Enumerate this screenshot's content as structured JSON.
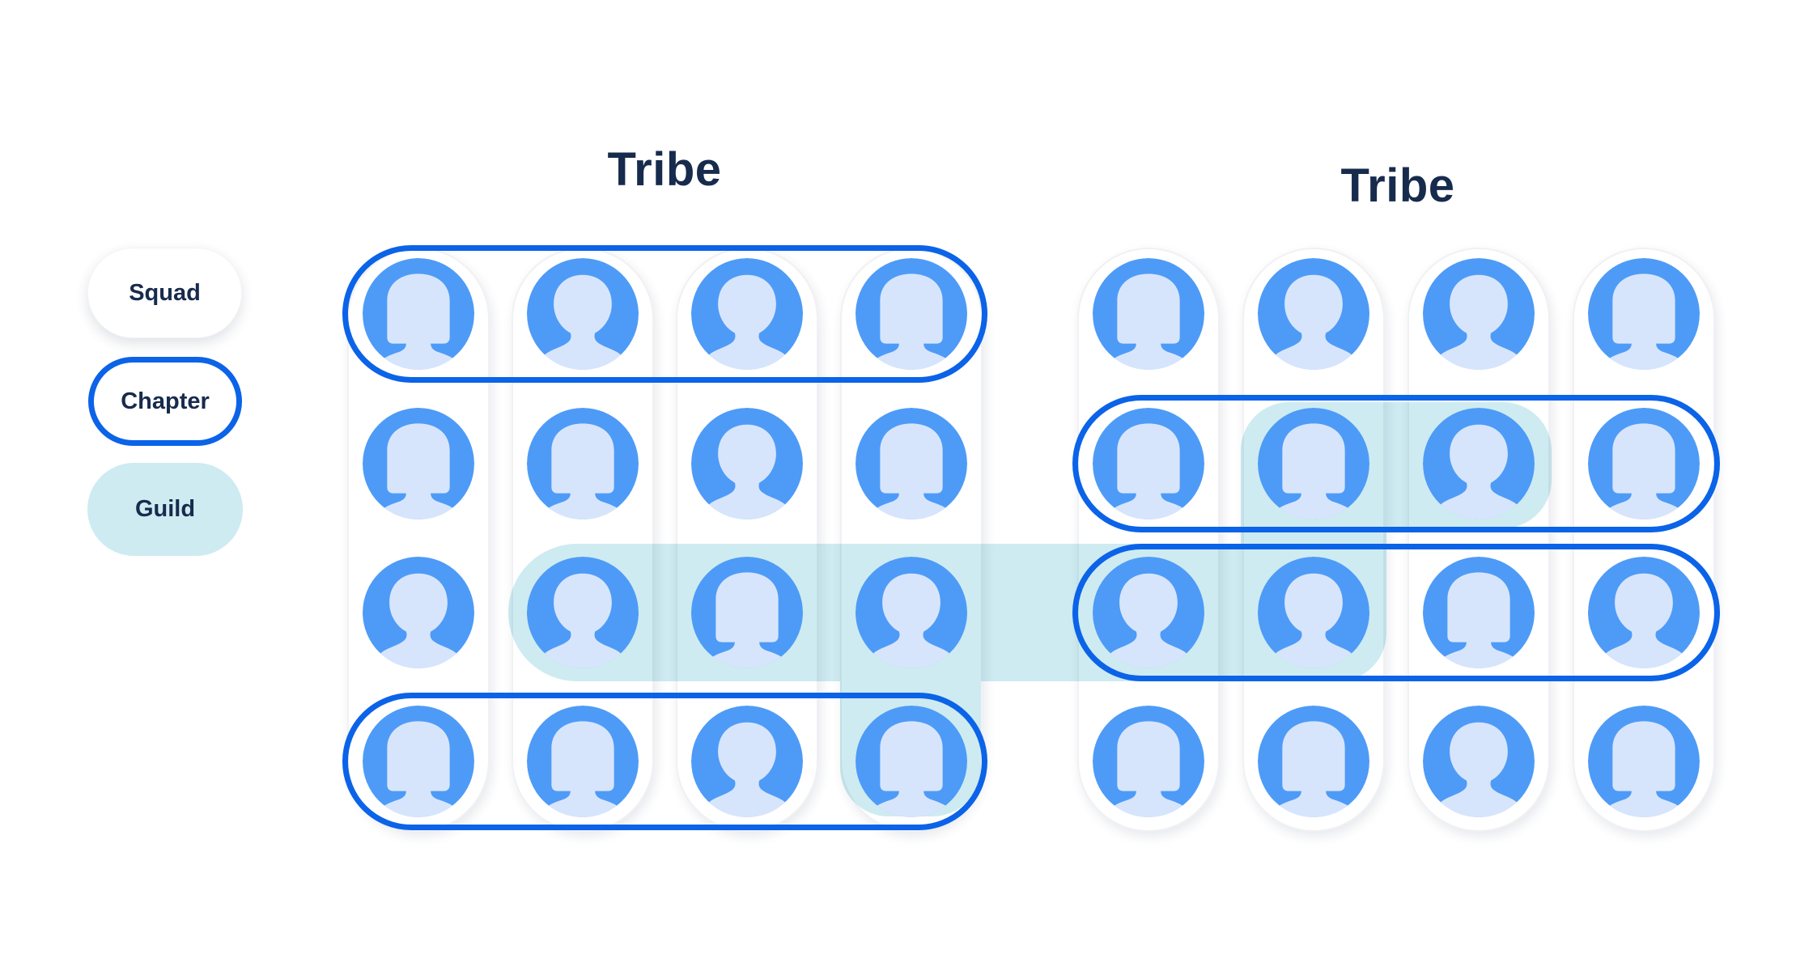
{
  "page": {
    "background": "#FFFFFF"
  },
  "legend": {
    "items": [
      {
        "id": "squad",
        "label": "Squad"
      },
      {
        "id": "chapter",
        "label": "Chapter"
      },
      {
        "id": "guild",
        "label": "Guild"
      }
    ]
  },
  "colors": {
    "title_text": "#172B4D",
    "legend_text": "#172B4D",
    "avatar_blue": "#4E9BF7",
    "avatar_silhouette": "#D7E5FC",
    "chapter_outline": "#0B63E8",
    "guild_fill": "#CEEBF1",
    "squad_fill": "#FFFFFF",
    "squad_border": "#F1F1F3"
  },
  "tribes": [
    {
      "label": "Tribe",
      "squads": [
        {
          "members": [
            "A",
            "A",
            "B",
            "A"
          ]
        },
        {
          "members": [
            "B",
            "A",
            "B",
            "A"
          ]
        },
        {
          "members": [
            "B",
            "B",
            "A",
            "B"
          ]
        },
        {
          "members": [
            "A",
            "A",
            "B",
            "A"
          ]
        }
      ]
    },
    {
      "label": "Tribe",
      "squads": [
        {
          "members": [
            "A",
            "A",
            "B",
            "A"
          ]
        },
        {
          "members": [
            "B",
            "A",
            "B",
            "A"
          ]
        },
        {
          "members": [
            "B",
            "B",
            "A",
            "B"
          ]
        },
        {
          "members": [
            "A",
            "A",
            "B",
            "A"
          ]
        }
      ]
    }
  ],
  "chapters": [
    {
      "tribe": 0,
      "row": 0
    },
    {
      "tribe": 0,
      "row": 3
    },
    {
      "tribe": 1,
      "row": 1
    },
    {
      "tribe": 1,
      "row": 2
    }
  ],
  "guild": {
    "members": [
      {
        "tribe": 0,
        "squad": 1,
        "row": 2
      },
      {
        "tribe": 0,
        "squad": 2,
        "row": 2
      },
      {
        "tribe": 0,
        "squad": 3,
        "row": 2
      },
      {
        "tribe": 0,
        "squad": 3,
        "row": 3
      },
      {
        "tribe": 1,
        "squad": 0,
        "row": 2
      },
      {
        "tribe": 1,
        "squad": 1,
        "row": 2
      },
      {
        "tribe": 1,
        "squad": 1,
        "row": 1
      },
      {
        "tribe": 1,
        "squad": 2,
        "row": 1
      }
    ]
  }
}
